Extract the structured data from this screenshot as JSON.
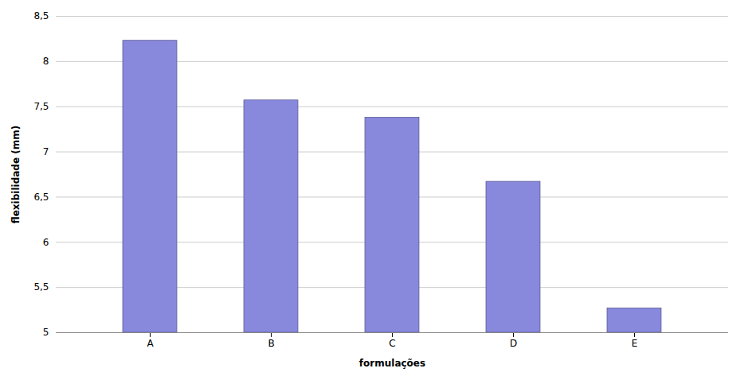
{
  "chart_data": {
    "type": "bar",
    "categories": [
      "A",
      "B",
      "C",
      "D",
      "E"
    ],
    "values": [
      8.23,
      7.57,
      7.38,
      6.67,
      5.27
    ],
    "color": "#8888dd",
    "xlabel": "formulações",
    "ylabel": "flexibilidade (mm)",
    "ylim": [
      5.0,
      8.5
    ],
    "yticks": [
      5,
      {
        "value": 5.5,
        "label": "5,5"
      },
      6,
      {
        "value": 6.5,
        "label": "6,5"
      },
      7,
      {
        "value": 7.5,
        "label": "7,5"
      },
      8,
      {
        "value": 8.5,
        "label": "8,5"
      }
    ],
    "grid": true
  }
}
